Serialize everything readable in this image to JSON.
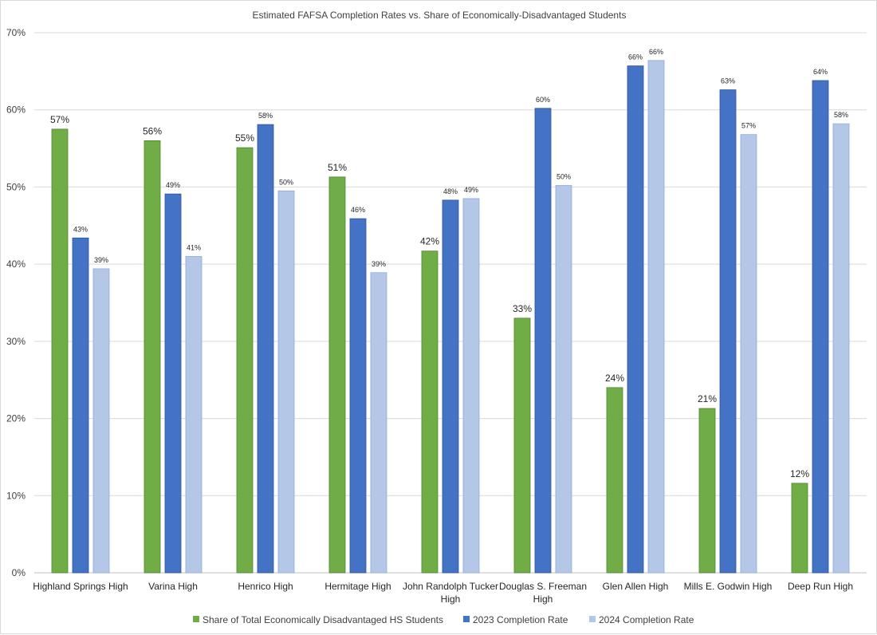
{
  "chart_data": {
    "type": "bar",
    "title": "Estimated FAFSA Completion Rates vs. Share of Economically-Disadvantaged Students",
    "xlabel": "",
    "ylabel": "",
    "ylim": [
      0,
      70
    ],
    "y_ticks": [
      "0%",
      "10%",
      "20%",
      "30%",
      "40%",
      "50%",
      "60%",
      "70%"
    ],
    "categories": [
      [
        "Highland Springs High"
      ],
      [
        "Varina High"
      ],
      [
        "Henrico High"
      ],
      [
        "Hermitage High"
      ],
      [
        "John Randolph Tucker",
        "High"
      ],
      [
        "Douglas S. Freeman",
        "High"
      ],
      [
        "Glen Allen High"
      ],
      [
        "Mills E. Godwin High"
      ],
      [
        "Deep Run High"
      ]
    ],
    "series": [
      {
        "name": "Share of Total Economically Disadvantaged HS Students",
        "color": "#70ad47",
        "values": [
          57.5,
          56.0,
          55.1,
          51.3,
          41.7,
          33.0,
          24.0,
          21.3,
          11.6
        ],
        "labels": [
          "57%",
          "56%",
          "55%",
          "51%",
          "42%",
          "33%",
          "24%",
          "21%",
          "12%"
        ]
      },
      {
        "name": "2023 Completion Rate",
        "color": "#4472c4",
        "values": [
          43.4,
          49.1,
          58.1,
          45.9,
          48.3,
          60.2,
          65.7,
          62.6,
          63.8
        ],
        "labels": [
          "43%",
          "49%",
          "58%",
          "46%",
          "48%",
          "60%",
          "66%",
          "63%",
          "64%"
        ]
      },
      {
        "name": "2024 Completion Rate",
        "color": "#b4c7e7",
        "values": [
          39.4,
          41.0,
          49.5,
          38.9,
          48.5,
          50.2,
          66.4,
          56.8,
          58.2
        ],
        "labels": [
          "39%",
          "41%",
          "50%",
          "39%",
          "49%",
          "50%",
          "66%",
          "57%",
          "58%"
        ]
      }
    ],
    "grid": true,
    "legend_position": "bottom"
  }
}
